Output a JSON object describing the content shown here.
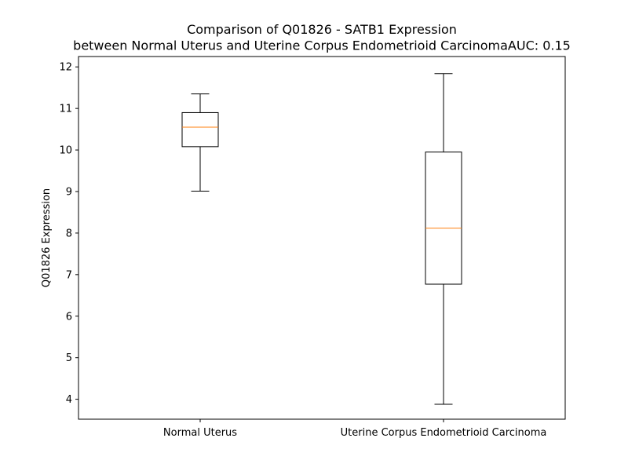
{
  "chart_data": {
    "type": "box",
    "title_line1": "Comparison of Q01826 - SATB1 Expression",
    "title_line2": "between Normal Uterus and Uterine Corpus Endometrioid CarcinomaAUC: 0.15",
    "xlabel": "",
    "ylabel": "Q01826 Expression",
    "ylim": [
      3.52,
      12.25
    ],
    "yticks": [
      4,
      5,
      6,
      7,
      8,
      9,
      10,
      11,
      12
    ],
    "grid": false,
    "categories": [
      "Normal Uterus",
      "Uterine Corpus Endometrioid Carcinoma"
    ],
    "boxes": [
      {
        "category": "Normal Uterus",
        "whisker_low": 9.01,
        "q1": 10.08,
        "median": 10.55,
        "q3": 10.9,
        "whisker_high": 11.35
      },
      {
        "category": "Uterine Corpus Endometrioid Carcinoma",
        "whisker_low": 3.88,
        "q1": 6.77,
        "median": 8.12,
        "q3": 9.95,
        "whisker_high": 11.84
      }
    ],
    "colors": {
      "box": "#000000",
      "median": "#ff7f0e",
      "axes": "#000000"
    }
  }
}
